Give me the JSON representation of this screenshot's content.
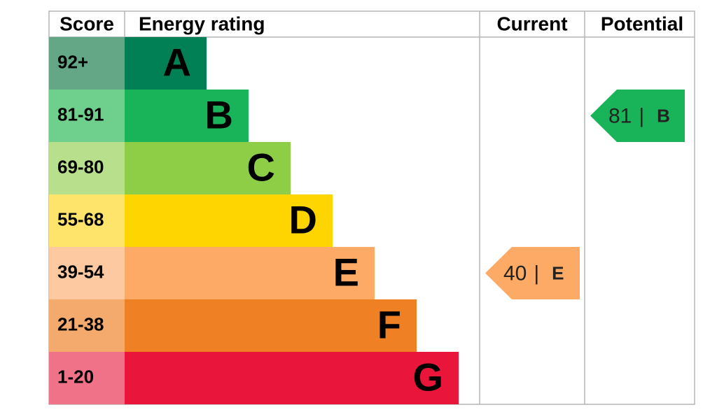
{
  "headers": {
    "score": "Score",
    "rating": "Energy rating",
    "current": "Current",
    "potential": "Potential"
  },
  "bands": [
    {
      "score": "92+",
      "letter": "A",
      "color": "#008054",
      "score_color": "#63a786"
    },
    {
      "score": "81-91",
      "letter": "B",
      "color": "#19b459",
      "score_color": "#6fcf8c"
    },
    {
      "score": "69-80",
      "letter": "C",
      "color": "#8dce46",
      "score_color": "#b8df8c"
    },
    {
      "score": "55-68",
      "letter": "D",
      "color": "#ffd500",
      "score_color": "#ffe46b"
    },
    {
      "score": "39-54",
      "letter": "E",
      "color": "#fcaa65",
      "score_color": "#fdc9a0"
    },
    {
      "score": "21-38",
      "letter": "F",
      "color": "#ef8023",
      "score_color": "#f4aa6c"
    },
    {
      "score": "1-20",
      "letter": "G",
      "color": "#e9153b",
      "score_color": "#f07289"
    }
  ],
  "current": {
    "value": 40,
    "separator": "|",
    "letter": "E"
  },
  "potential": {
    "value": 81,
    "separator": "|",
    "letter": "B"
  }
}
